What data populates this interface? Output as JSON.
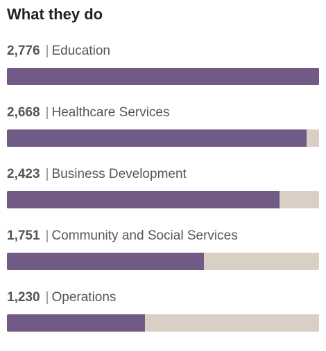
{
  "panel": {
    "title": "What they do"
  },
  "colors": {
    "bar_fill": "#725a86",
    "bar_track": "#d9cfc4"
  },
  "chart_data": {
    "type": "bar",
    "orientation": "horizontal",
    "title": "What they do",
    "max_value": 2776,
    "categories": [
      "Education",
      "Healthcare Services",
      "Business Development",
      "Community and Social Services",
      "Operations"
    ],
    "values": [
      2776,
      2668,
      2423,
      1751,
      1230
    ],
    "value_labels": [
      "2,776",
      "2,668",
      "2,423",
      "1,751",
      "1,230"
    ]
  }
}
